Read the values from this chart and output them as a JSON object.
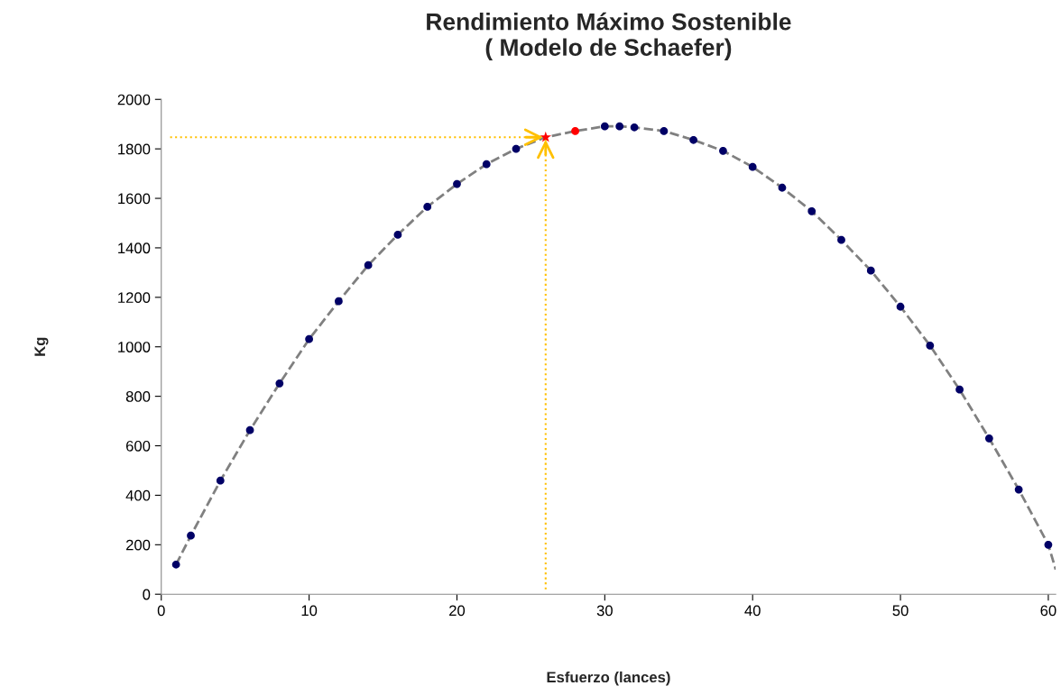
{
  "chart_data": {
    "type": "scatter",
    "title": "Rendimiento Máximo Sostenible\n( Modelo de Schaefer)",
    "xlabel": "Esfuerzo (lances)",
    "ylabel": "Kg",
    "xlim": [
      0,
      60.5
    ],
    "xticks": [
      0,
      10,
      20,
      30,
      40,
      50,
      60
    ],
    "ylim": [
      0,
      2000
    ],
    "yticks": [
      0,
      200,
      400,
      600,
      800,
      1000,
      1200,
      1400,
      1600,
      1800,
      2000
    ],
    "grid": false,
    "legend": false,
    "series": [
      {
        "type": "line",
        "line_style": "dashed",
        "marker": "none",
        "color": "#808080",
        "x": [
          1,
          2,
          4,
          6,
          8,
          10,
          12,
          14,
          16,
          18,
          20,
          22,
          24,
          26,
          28,
          30,
          31,
          32,
          34,
          36,
          38,
          40,
          42,
          44,
          46,
          48,
          50,
          52,
          54,
          56,
          58,
          60,
          60.5
        ],
        "values": [
          120,
          237,
          459,
          663,
          852,
          1031,
          1184,
          1330,
          1453,
          1566,
          1658,
          1738,
          1800,
          1847,
          1872,
          1891,
          1891,
          1887,
          1872,
          1836,
          1792,
          1727,
          1643,
          1548,
          1432,
          1308,
          1162,
          1005,
          827,
          630,
          423,
          200,
          100
        ]
      },
      {
        "marker": "circle",
        "color": "#000066",
        "x": [
          1,
          2,
          4,
          6,
          8,
          10,
          12,
          14,
          16,
          18,
          20,
          22,
          24,
          30,
          31,
          32,
          34,
          36,
          38,
          40,
          42,
          44,
          46,
          48,
          50,
          52,
          54,
          56,
          58,
          60
        ],
        "values": [
          120,
          237,
          459,
          663,
          852,
          1031,
          1184,
          1330,
          1453,
          1566,
          1658,
          1738,
          1800,
          1891,
          1891,
          1887,
          1872,
          1836,
          1792,
          1727,
          1643,
          1548,
          1432,
          1308,
          1162,
          1005,
          827,
          630,
          423,
          200
        ]
      },
      {
        "type": "scatter",
        "marker": "circle",
        "color": "#ff0000",
        "x": [
          28
        ],
        "values": [
          1872
        ]
      },
      {
        "type": "scatter",
        "marker": "star",
        "color": "#ff0000",
        "x": [
          26
        ],
        "values": [
          1847
        ]
      }
    ],
    "ref_lines": [
      {
        "axis": "y",
        "value": 1847,
        "color": "#ffc000",
        "line_style": "dotted"
      },
      {
        "axis": "x",
        "value": 26,
        "color": "#ffc000",
        "line_style": "dotted"
      }
    ]
  }
}
